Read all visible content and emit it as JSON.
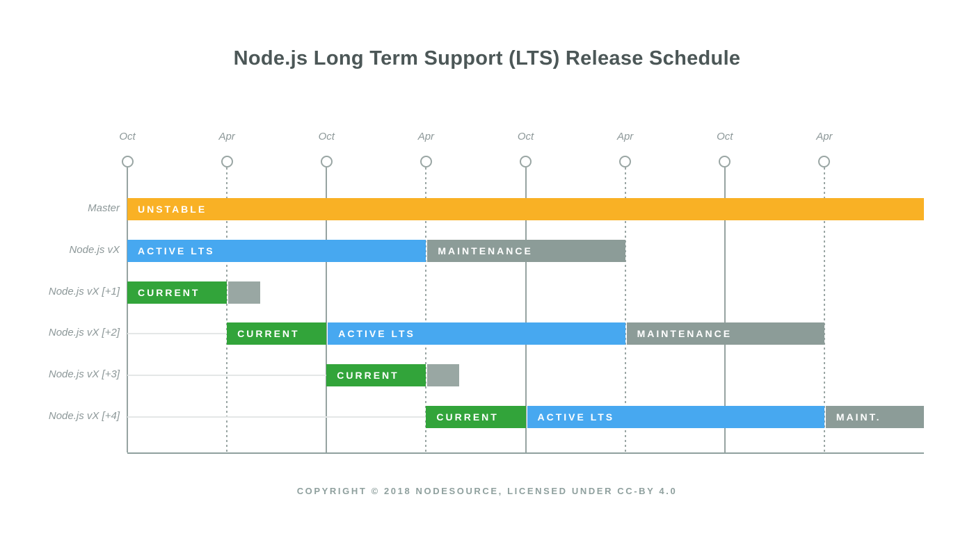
{
  "page": {
    "title": "Node.js Long Term Support (LTS) Release Schedule",
    "footer": "COPYRIGHT © 2018 NODESOURCE, LICENSED UNDER CC-BY 4.0"
  },
  "colors": {
    "unstable": "#F9B125",
    "current": "#32A43A",
    "active_lts": "#47A8F0",
    "maintenance": "#8C9C98",
    "post_current": "#99A7A3",
    "axis": "#96A3A1",
    "baseline": "#E4E7E7",
    "title_text": "#4C5757",
    "label_text": "#8D9899",
    "footer_text": "#8FA09E",
    "bar_text": "#FFFFFF"
  },
  "chart_data": {
    "type": "bar",
    "subtype": "gantt-timeline",
    "title": "Node.js Long Term Support (LTS) Release Schedule",
    "xlabel": "",
    "ylabel": "",
    "x_axis": {
      "unit": "half-year steps starting at first October",
      "range": [
        0,
        8
      ],
      "grid": "vertical lines at each tick; Oct = solid, Apr = dashed",
      "ticks": [
        {
          "x": 0,
          "label": "Oct",
          "line": "solid"
        },
        {
          "x": 1,
          "label": "Apr",
          "line": "dashed"
        },
        {
          "x": 2,
          "label": "Oct",
          "line": "solid"
        },
        {
          "x": 3,
          "label": "Apr",
          "line": "dashed"
        },
        {
          "x": 4,
          "label": "Oct",
          "line": "solid"
        },
        {
          "x": 5,
          "label": "Apr",
          "line": "dashed"
        },
        {
          "x": 6,
          "label": "Oct",
          "line": "solid"
        },
        {
          "x": 7,
          "label": "Apr",
          "line": "dashed"
        }
      ]
    },
    "legend": "none",
    "rows": [
      {
        "label": "Master",
        "segments": [
          {
            "label": "UNSTABLE",
            "status": "unstable",
            "start": 0,
            "end": 8
          }
        ]
      },
      {
        "label": "Node.js vX",
        "segments": [
          {
            "label": "ACTIVE LTS",
            "status": "active_lts",
            "start": 0,
            "end": 3
          },
          {
            "label": "MAINTENANCE",
            "status": "maintenance",
            "start": 3,
            "end": 5
          }
        ]
      },
      {
        "label": "Node.js vX [+1]",
        "segments": [
          {
            "label": "CURRENT",
            "status": "current",
            "start": 0,
            "end": 1
          },
          {
            "label": "",
            "status": "post_current",
            "start": 1,
            "end": 1.335
          }
        ]
      },
      {
        "label": "Node.js vX [+2]",
        "segments": [
          {
            "label": "CURRENT",
            "status": "current",
            "start": 1,
            "end": 2
          },
          {
            "label": "ACTIVE LTS",
            "status": "active_lts",
            "start": 2,
            "end": 5
          },
          {
            "label": "MAINTENANCE",
            "status": "maintenance",
            "start": 5,
            "end": 7
          }
        ]
      },
      {
        "label": "Node.js vX [+3]",
        "segments": [
          {
            "label": "CURRENT",
            "status": "current",
            "start": 2,
            "end": 3
          },
          {
            "label": "",
            "status": "post_current",
            "start": 3,
            "end": 3.335
          }
        ]
      },
      {
        "label": "Node.js vX [+4]",
        "segments": [
          {
            "label": "CURRENT",
            "status": "current",
            "start": 3,
            "end": 4
          },
          {
            "label": "ACTIVE LTS",
            "status": "active_lts",
            "start": 4,
            "end": 7
          },
          {
            "label": "MAINT.",
            "status": "maintenance",
            "start": 7,
            "end": 8
          }
        ]
      }
    ]
  }
}
